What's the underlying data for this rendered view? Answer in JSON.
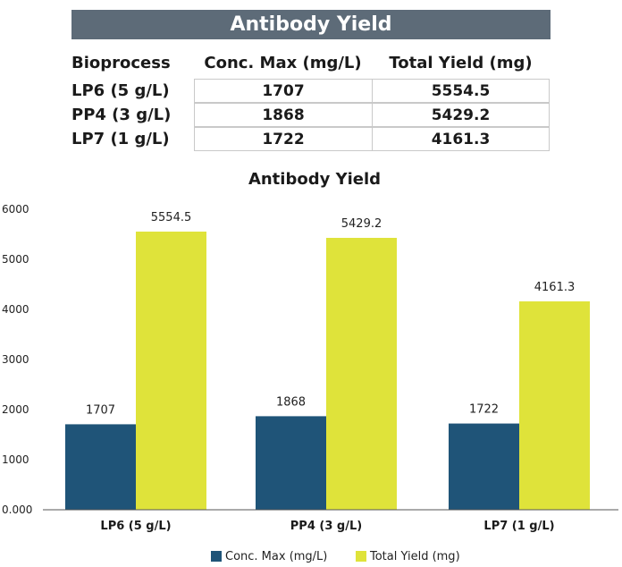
{
  "table": {
    "title": "Antibody Yield",
    "headers": [
      "Bioprocess",
      "Conc. Max (mg/L)",
      "Total Yield (mg)"
    ],
    "rows": [
      {
        "label": "LP6 (5 g/L)",
        "conc": "1707",
        "yield": "5554.5"
      },
      {
        "label": "PP4 (3 g/L)",
        "conc": "1868",
        "yield": "5429.2"
      },
      {
        "label": "LP7 (1 g/L)",
        "conc": "1722",
        "yield": "4161.3"
      }
    ]
  },
  "chart_data": {
    "type": "bar",
    "title": "Antibody Yield",
    "categories": [
      "LP6 (5 g/L)",
      "PP4 (3 g/L)",
      "LP7 (1 g/L)"
    ],
    "series": [
      {
        "name": "Conc. Max (mg/L)",
        "values": [
          1707,
          1868,
          1722
        ],
        "labels": [
          "1707",
          "1868",
          "1722"
        ],
        "color": "#1f5478"
      },
      {
        "name": "Total Yield (mg)",
        "values": [
          5554.5,
          5429.2,
          4161.3
        ],
        "labels": [
          "5554.5",
          "5429.2",
          "4161.3"
        ],
        "color": "#dfe33a"
      }
    ],
    "yticks": [
      "0.000",
      "1000",
      "2000",
      "3000",
      "4000",
      "5000",
      "6000"
    ],
    "ylim": [
      0,
      6000
    ],
    "grid": false,
    "legend": "bottom"
  }
}
